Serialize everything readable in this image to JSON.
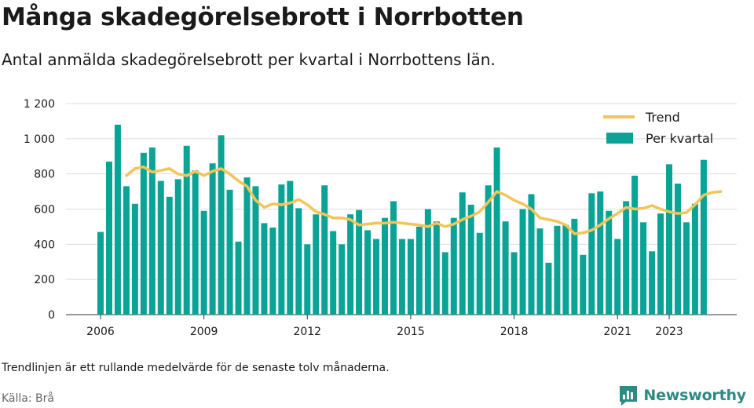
{
  "header": {
    "title": "Många skadegörelsebrott i Norrbotten",
    "subtitle": "Antal anmälda skadegörelsebrott per kvartal i Norrbottens län."
  },
  "footer": {
    "note": "Trendlinjen är ett rullande medelvärde för de senaste tolv månaderna.",
    "source": "Källa: Brå",
    "brand": "Newsworthy",
    "brand_icon": "bar-chart-logo-icon",
    "brand_color": "#2f8a82"
  },
  "chart_data": {
    "type": "bar",
    "ylim": [
      0,
      1200
    ],
    "yticks": [
      0,
      200,
      400,
      600,
      800,
      1000,
      1200
    ],
    "ytick_labels": [
      "0",
      "200",
      "400",
      "600",
      "800",
      "1 000",
      "1 200"
    ],
    "xticks": [
      "2006",
      "2009",
      "2012",
      "2015",
      "2018",
      "2021",
      "2023"
    ],
    "xtick_positions": [
      0,
      12,
      24,
      36,
      48,
      60,
      66
    ],
    "grid": true,
    "legend_position": "top-right",
    "colors": {
      "bars": "#0aa396",
      "trend": "#f2c558"
    },
    "series": [
      {
        "name": "Per kvartal",
        "type": "bar",
        "values": [
          470,
          870,
          1080,
          730,
          630,
          920,
          950,
          760,
          670,
          770,
          960,
          820,
          590,
          860,
          1020,
          710,
          415,
          780,
          730,
          520,
          495,
          740,
          760,
          605,
          400,
          570,
          735,
          475,
          400,
          570,
          595,
          480,
          430,
          550,
          645,
          430,
          430,
          500,
          600,
          530,
          355,
          550,
          695,
          625,
          465,
          735,
          950,
          530,
          355,
          600,
          685,
          490,
          295,
          505,
          510,
          545,
          340,
          690,
          700,
          590,
          430,
          645,
          790,
          525,
          360,
          575,
          855,
          745,
          525,
          630,
          880
        ]
      },
      {
        "name": "Trend",
        "type": "line",
        "start_index": 3,
        "values": [
          790,
          830,
          840,
          810,
          820,
          830,
          800,
          790,
          815,
          790,
          815,
          830,
          800,
          760,
          730,
          650,
          610,
          630,
          625,
          635,
          655,
          625,
          585,
          570,
          550,
          550,
          540,
          510,
          515,
          520,
          520,
          525,
          520,
          515,
          510,
          500,
          520,
          500,
          515,
          540,
          560,
          585,
          640,
          700,
          680,
          650,
          630,
          600,
          550,
          540,
          530,
          510,
          460,
          465,
          480,
          510,
          545,
          575,
          610,
          600,
          605,
          620,
          600,
          585,
          575,
          580,
          625,
          680,
          695,
          700
        ]
      }
    ]
  }
}
